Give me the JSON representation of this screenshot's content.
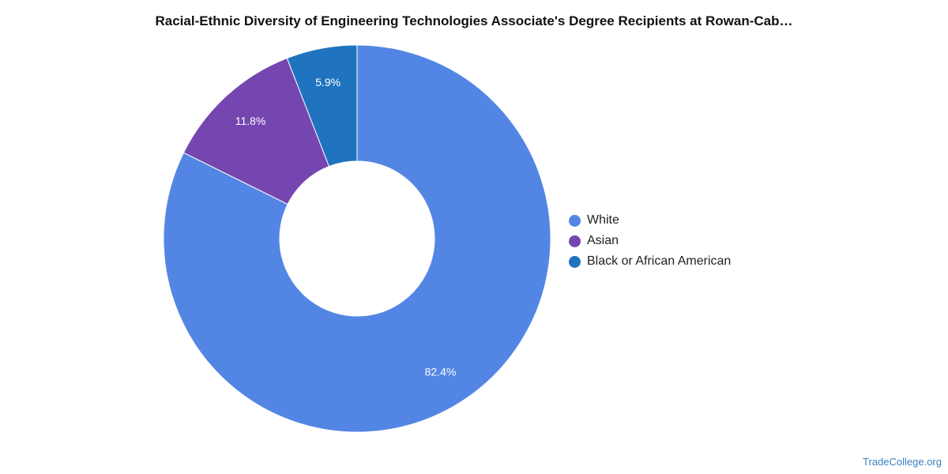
{
  "chart_data": {
    "type": "pie",
    "title": "Racial-Ethnic Diversity of Engineering Technologies Associate's Degree Recipients at Rowan-Cab…",
    "legend_position": "right",
    "donut": true,
    "slices": [
      {
        "name": "White",
        "value": 82.4,
        "label": "82.4%",
        "color": "#5386e4"
      },
      {
        "name": "Asian",
        "value": 11.8,
        "label": "11.8%",
        "color": "#7546b0"
      },
      {
        "name": "Black or African American",
        "value": 5.9,
        "label": "5.9%",
        "color": "#1f73bf"
      }
    ]
  },
  "source": "TradeCollege.org"
}
